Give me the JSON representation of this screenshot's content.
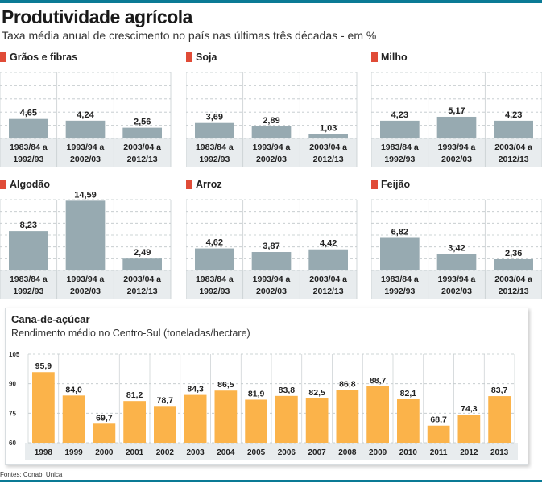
{
  "header": {
    "title": "Produtividade agrícola",
    "subtitle": "Taxa média anual de crescimento no país nas últimas três décadas - em %"
  },
  "source": "Fontes: Conab, Unica",
  "colors": {
    "accent": "#0a7a95",
    "marker": "#e04b37",
    "gray_bar": "#97aab1",
    "orange_bar": "#fbb34a",
    "label_band": "#e8ecee"
  },
  "chart_data": [
    {
      "type": "bar",
      "title": "Grãos e fibras",
      "categories": [
        "1983/84 a|1992/93",
        "1993/94 a|2002/03",
        "2003/04 a|2012/13"
      ],
      "values": [
        4.65,
        4.24,
        2.56
      ],
      "labels": [
        "4,65",
        "4,24",
        "2,56"
      ],
      "ylim": [
        0,
        16
      ],
      "grid": true
    },
    {
      "type": "bar",
      "title": "Soja",
      "categories": [
        "1983/84 a|1992/93",
        "1993/94 a|2002/03",
        "2003/04 a|2012/13"
      ],
      "values": [
        3.69,
        2.89,
        1.03
      ],
      "labels": [
        "3,69",
        "2,89",
        "1,03"
      ],
      "ylim": [
        0,
        16
      ],
      "grid": true
    },
    {
      "type": "bar",
      "title": "Milho",
      "categories": [
        "1983/84 a|1992/93",
        "1993/94 a|2002/03",
        "2003/04 a|2012/13"
      ],
      "values": [
        4.23,
        5.17,
        4.23
      ],
      "labels": [
        "4,23",
        "5,17",
        "4,23"
      ],
      "ylim": [
        0,
        16
      ],
      "grid": true
    },
    {
      "type": "bar",
      "title": "Algodão",
      "categories": [
        "1983/84 a|1992/93",
        "1993/94 a|2002/03",
        "2003/04 a|2012/13"
      ],
      "values": [
        8.23,
        14.59,
        2.49
      ],
      "labels": [
        "8,23",
        "14,59",
        "2,49"
      ],
      "ylim": [
        0,
        16
      ],
      "grid": true
    },
    {
      "type": "bar",
      "title": "Arroz",
      "categories": [
        "1983/84 a|1992/93",
        "1993/94 a|2002/03",
        "2003/04 a|2012/13"
      ],
      "values": [
        4.62,
        3.87,
        4.42
      ],
      "labels": [
        "4,62",
        "3,87",
        "4,42"
      ],
      "ylim": [
        0,
        16
      ],
      "grid": true
    },
    {
      "type": "bar",
      "title": "Feijão",
      "categories": [
        "1983/84 a|1992/93",
        "1993/94 a|2002/03",
        "2003/04 a|2012/13"
      ],
      "values": [
        6.82,
        3.42,
        2.36
      ],
      "labels": [
        "6,82",
        "3,42",
        "2,36"
      ],
      "ylim": [
        0,
        16
      ],
      "grid": true
    },
    {
      "type": "bar",
      "title": "Cana-de-açúcar",
      "subtitle": "Rendimento médio no Centro-Sul (toneladas/hectare)",
      "categories": [
        "1998",
        "1999",
        "2000",
        "2001",
        "2002",
        "2003",
        "2004",
        "2005",
        "2006",
        "2007",
        "2008",
        "2009",
        "2010",
        "2011",
        "2012",
        "2013"
      ],
      "values": [
        95.9,
        84.0,
        69.7,
        81.2,
        78.7,
        84.3,
        86.5,
        81.9,
        83.8,
        82.5,
        86.8,
        88.7,
        82.1,
        68.7,
        74.3,
        83.7
      ],
      "labels": [
        "95,9",
        "84,0",
        "69,7",
        "81,2",
        "78,7",
        "84,3",
        "86,5",
        "81,9",
        "83,8",
        "82,5",
        "86,8",
        "88,7",
        "82,1",
        "68,7",
        "74,3",
        "83,7"
      ],
      "yticks": [
        60,
        75,
        90,
        105
      ],
      "ylim": [
        60,
        105
      ],
      "grid": true
    }
  ]
}
